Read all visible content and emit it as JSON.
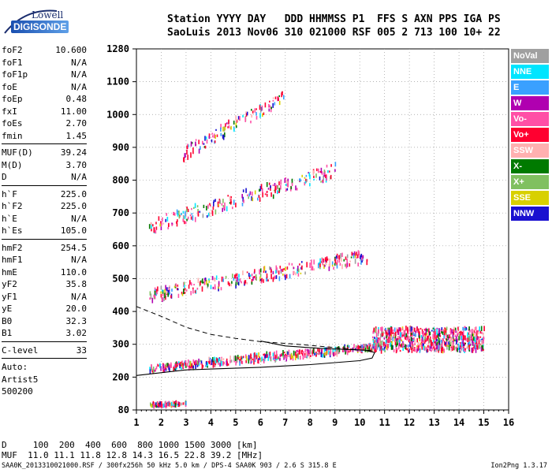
{
  "logo": {
    "line1": "Lowell",
    "line2": "DIGISONDE"
  },
  "header": {
    "keys": "Station YYYY DAY   DDD HHMMSS P1  FFS S AXN PPS IGA PS",
    "values": "SaoLuis 2013 Nov06 310 021000 RSF 005 2 713 100 10+ 22"
  },
  "params": {
    "group1": [
      {
        "label": "foF2",
        "value": "10.600"
      },
      {
        "label": "foF1",
        "value": "N/A"
      },
      {
        "label": "foF1p",
        "value": "N/A"
      },
      {
        "label": "foE",
        "value": "N/A"
      },
      {
        "label": "foEp",
        "value": "0.48"
      },
      {
        "label": "fxI",
        "value": "11.00"
      },
      {
        "label": "foEs",
        "value": "2.70"
      },
      {
        "label": "fmin",
        "value": "1.45"
      }
    ],
    "group2": [
      {
        "label": "MUF(D)",
        "value": "39.24"
      },
      {
        "label": "M(D)",
        "value": "3.70"
      },
      {
        "label": "D",
        "value": "N/A"
      }
    ],
    "group3": [
      {
        "label": "h`F",
        "value": "225.0"
      },
      {
        "label": "h`F2",
        "value": "225.0"
      },
      {
        "label": "h`E",
        "value": "N/A"
      },
      {
        "label": "h`Es",
        "value": "105.0"
      }
    ],
    "group4": [
      {
        "label": "hmF2",
        "value": "254.5"
      },
      {
        "label": "hmF1",
        "value": "N/A"
      },
      {
        "label": "hmE",
        "value": "110.0"
      },
      {
        "label": "yF2",
        "value": "35.8"
      },
      {
        "label": "yF1",
        "value": "N/A"
      },
      {
        "label": "yE",
        "value": "20.0"
      },
      {
        "label": "B0",
        "value": "32.3"
      },
      {
        "label": "B1",
        "value": "3.02"
      }
    ],
    "group5": [
      {
        "label": "C-level",
        "value": "33"
      }
    ],
    "auto": [
      "Auto:",
      "Artist5",
      "500200"
    ]
  },
  "legend": [
    {
      "label": "NoVal",
      "color": "#a0a0a0"
    },
    {
      "label": "NNE",
      "color": "#00e5ff"
    },
    {
      "label": "E",
      "color": "#3aa0ff"
    },
    {
      "label": "W",
      "color": "#b000b0"
    },
    {
      "label": "Vo-",
      "color": "#ff4fa6"
    },
    {
      "label": "Vo+",
      "color": "#ff0030"
    },
    {
      "label": "SSW",
      "color": "#ffb0b0"
    },
    {
      "label": "X-",
      "color": "#007a00"
    },
    {
      "label": "X+",
      "color": "#80c060"
    },
    {
      "label": "SSE",
      "color": "#d8d000"
    },
    {
      "label": "NNW",
      "color": "#1a10d0"
    }
  ],
  "footer": {
    "d_line": "D     100  200  400  600  800 1000 1500 3000 [km]",
    "muf_line": "MUF  11.0 11.1 11.8 12.8 14.3 16.5 22.8 39.2 [MHz]",
    "file_line": "SAA0K_2013310021000.RSF / 300fx256h 50 kHz 5.0 km / DPS-4 SAA0K 903 / 2.6 S 315.8 E",
    "version": "Ion2Png 1.3.17"
  },
  "chart_data": {
    "type": "scatter",
    "xlim": [
      1,
      16
    ],
    "ylim": [
      80,
      1280
    ],
    "x_ticks": [
      "1",
      "2",
      "3",
      "4",
      "5",
      "6",
      "7",
      "8",
      "9",
      "10",
      "11",
      "12",
      "13",
      "14",
      "15",
      "16"
    ],
    "y_ticks": [
      "80",
      "200",
      "300",
      "400",
      "500",
      "600",
      "700",
      "800",
      "900",
      "1000",
      "1100",
      "1280"
    ],
    "grid": true,
    "traces": [
      {
        "name": "Es",
        "x0": 1.5,
        "x1": 3.0,
        "h0": 95,
        "h1": 100,
        "spread": 12,
        "density": 90
      },
      {
        "name": "F 1-hop",
        "x0": 1.5,
        "x1": 11.0,
        "h0": 222,
        "h1": 290,
        "spread": 22,
        "density": 520
      },
      {
        "name": "F 2-hop",
        "x0": 1.5,
        "x1": 10.3,
        "h0": 440,
        "h1": 560,
        "spread": 40,
        "density": 300
      },
      {
        "name": "F 3-hop",
        "x0": 1.5,
        "x1": 9.0,
        "h0": 650,
        "h1": 820,
        "spread": 45,
        "density": 220
      },
      {
        "name": "F 4-hop",
        "x0": 2.8,
        "x1": 7.0,
        "h0": 870,
        "h1": 1050,
        "spread": 40,
        "density": 110
      },
      {
        "name": "Spread F",
        "x0": 10.5,
        "x1": 15.0,
        "h0": 300,
        "h1": 300,
        "spread": 70,
        "density": 700
      }
    ],
    "profile_curve": {
      "name": "O-trace profile",
      "points": [
        [
          1.0,
          205
        ],
        [
          3.0,
          222
        ],
        [
          6.0,
          230
        ],
        [
          8.0,
          238
        ],
        [
          10.0,
          250
        ],
        [
          10.5,
          258
        ],
        [
          10.6,
          275
        ],
        [
          10.2,
          282
        ],
        [
          8.5,
          287
        ],
        [
          7.0,
          295
        ],
        [
          6.0,
          310
        ]
      ]
    },
    "dashed_curve": {
      "name": "X-trace estimate",
      "points": [
        [
          1.0,
          415
        ],
        [
          2.0,
          385
        ],
        [
          3.0,
          352
        ],
        [
          4.0,
          330
        ],
        [
          5.0,
          318
        ],
        [
          6.0,
          308
        ],
        [
          7.5,
          300
        ],
        [
          9.0,
          290
        ],
        [
          10.0,
          283
        ],
        [
          10.6,
          280
        ]
      ]
    }
  }
}
